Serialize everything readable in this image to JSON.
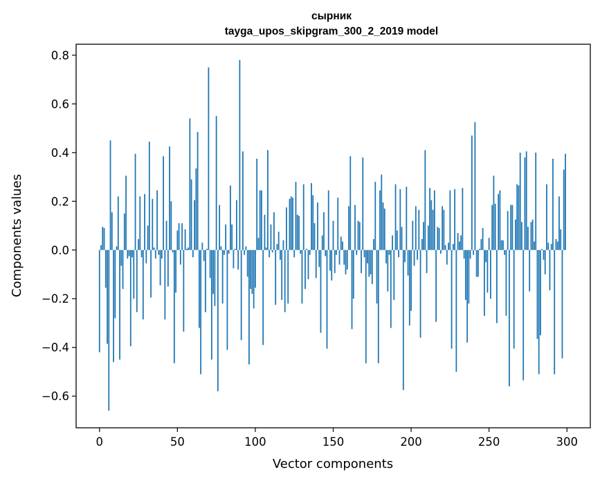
{
  "chart_data": {
    "type": "bar",
    "title": "сырник",
    "subtitle": "tayga_upos_skipgram_300_2_2019 model",
    "xlabel": "Vector components",
    "ylabel": "Components values",
    "xlim": [
      -15,
      315
    ],
    "ylim": [
      -0.73,
      0.845
    ],
    "xticks": [
      0,
      50,
      100,
      150,
      200,
      250,
      300
    ],
    "yticks": [
      -0.6,
      -0.4,
      -0.2,
      0.0,
      0.2,
      0.4,
      0.6,
      0.8
    ],
    "ytick_labels": [
      "−0.6",
      "−0.4",
      "−0.2",
      "0.0",
      "0.2",
      "0.4",
      "0.6",
      "0.8"
    ],
    "grid": false,
    "bar_color": "#1f77b4",
    "x": "0..299",
    "values": [
      -0.42,
      0.02,
      0.095,
      0.09,
      -0.155,
      -0.385,
      -0.66,
      0.45,
      0.155,
      -0.46,
      -0.28,
      0.015,
      0.22,
      -0.45,
      -0.065,
      -0.16,
      0.15,
      0.305,
      -0.035,
      -0.025,
      -0.395,
      -0.03,
      -0.2,
      0.395,
      -0.255,
      0.045,
      0.22,
      -0.03,
      -0.285,
      0.23,
      -0.055,
      0.1,
      0.445,
      -0.195,
      0.21,
      0.01,
      -0.035,
      0.245,
      -0.02,
      -0.145,
      -0.035,
      0.385,
      -0.285,
      0.12,
      -0.15,
      0.425,
      0.2,
      -0.01,
      -0.465,
      -0.175,
      0.08,
      0.11,
      -0.06,
      0.11,
      -0.335,
      0.085,
      0.005,
      0.01,
      0.54,
      0.29,
      -0.03,
      0.205,
      0.335,
      0.485,
      -0.32,
      -0.51,
      0.03,
      -0.045,
      -0.255,
      0.005,
      0.75,
      -0.115,
      -0.45,
      -0.18,
      -0.23,
      0.55,
      -0.58,
      0.185,
      0.015,
      -0.22,
      -0.02,
      0.105,
      -0.41,
      -0.015,
      0.265,
      0.105,
      -0.075,
      0.005,
      0.205,
      -0.08,
      0.78,
      -0.37,
      0.405,
      -0.02,
      0.015,
      -0.11,
      -0.47,
      -0.16,
      -0.18,
      -0.24,
      -0.155,
      0.375,
      0.05,
      0.245,
      0.245,
      -0.39,
      0.145,
      0.01,
      0.41,
      -0.03,
      0.105,
      -0.01,
      0.155,
      -0.225,
      0.025,
      0.075,
      -0.04,
      -0.205,
      0.04,
      -0.255,
      0.175,
      -0.22,
      0.21,
      0.22,
      0.215,
      -0.03,
      0.28,
      0.145,
      0.14,
      -0.015,
      -0.22,
      0.27,
      -0.16,
      0.005,
      -0.12,
      -0.02,
      0.275,
      0.225,
      0.11,
      -0.115,
      0.195,
      -0.07,
      -0.34,
      0.06,
      0.155,
      -0.025,
      -0.405,
      0.245,
      -0.085,
      -0.125,
      0.12,
      -0.095,
      -0.02,
      0.215,
      -0.06,
      0.055,
      0.035,
      -0.06,
      -0.1,
      -0.08,
      0.18,
      0.385,
      -0.325,
      -0.2,
      0.185,
      -0.02,
      0.12,
      0.115,
      -0.095,
      0.38,
      -0.03,
      -0.465,
      -0.055,
      -0.11,
      -0.1,
      -0.14,
      0.045,
      0.28,
      -0.22,
      -0.465,
      0.245,
      0.31,
      0.195,
      0.17,
      -0.055,
      -0.17,
      -0.02,
      -0.32,
      0.06,
      -0.205,
      0.27,
      0.08,
      -0.03,
      0.25,
      0.095,
      -0.575,
      -0.05,
      0.26,
      -0.105,
      -0.31,
      -0.25,
      0.12,
      -0.065,
      0.18,
      -0.04,
      0.165,
      -0.36,
      0.045,
      0.115,
      0.41,
      -0.095,
      0.1,
      0.255,
      0.205,
      0.165,
      0.245,
      -0.295,
      0.095,
      0.09,
      -0.015,
      0.18,
      0.165,
      0.02,
      -0.06,
      0.03,
      0.245,
      -0.405,
      0.025,
      0.25,
      -0.5,
      0.07,
      0.035,
      0.06,
      0.255,
      -0.035,
      -0.205,
      -0.38,
      -0.22,
      -0.035,
      0.47,
      -0.02,
      0.525,
      -0.11,
      -0.11,
      0.005,
      0.045,
      0.09,
      -0.27,
      -0.05,
      -0.175,
      0.05,
      -0.2,
      0.185,
      0.305,
      0.19,
      -0.3,
      0.23,
      0.245,
      0.04,
      0.04,
      -0.02,
      -0.27,
      0.16,
      -0.56,
      0.185,
      0.185,
      -0.405,
      0.125,
      0.27,
      0.265,
      0.4,
      0.115,
      -0.535,
      0.38,
      0.405,
      0.095,
      -0.17,
      0.115,
      0.125,
      0.035,
      0.4,
      -0.365,
      -0.51,
      -0.35,
      0.005,
      -0.04,
      -0.1,
      0.27,
      0.03,
      -0.165,
      0.025,
      0.375,
      -0.51,
      0.045,
      0.035,
      0.22,
      0.085,
      -0.445,
      0.33,
      0.395
    ]
  }
}
